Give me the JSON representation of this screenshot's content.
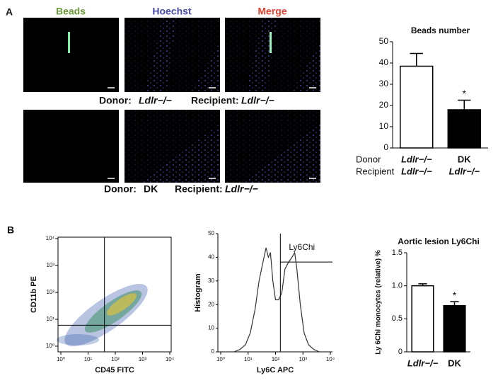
{
  "panel_a": {
    "label": "A",
    "channels": [
      "Beads",
      "Hoechst",
      "Merge"
    ],
    "channel_colors": [
      "#6b9a3a",
      "#4b4bb0",
      "#e8402e"
    ],
    "rows": [
      {
        "donor_label": "Donor:",
        "donor": "Ldlr−/−",
        "recipient_label": "Recipient:",
        "recipient": "Ldlr−/−"
      },
      {
        "donor_label": "Donor:",
        "donor": "DK",
        "recipient_label": "Recipient:",
        "recipient": "Ldlr−/−"
      }
    ]
  },
  "panel_b": {
    "label": "B"
  },
  "chart_data": [
    {
      "type": "bar",
      "title": "Beads number",
      "row_labels": [
        "Donor",
        "Recipient"
      ],
      "categories": [
        "Ldlr−/−",
        "DK"
      ],
      "recipient_categories": [
        "Ldlr−/−",
        "Ldlr−/−"
      ],
      "values": [
        38.5,
        18
      ],
      "errors": [
        6,
        4.5
      ],
      "colors": [
        "#ffffff",
        "#000000"
      ],
      "significance": [
        null,
        "*"
      ],
      "ylim": [
        0,
        50
      ],
      "yticks": [
        0,
        10,
        20,
        30,
        40,
        50
      ]
    },
    {
      "type": "density",
      "x_label": "CD45 FITC",
      "y_label": "CD11b PE",
      "log": true,
      "xlim": [
        1,
        10000
      ],
      "ylim": [
        1,
        10000
      ],
      "xticks": [
        {
          "value": 1,
          "label": "10⁰"
        },
        {
          "value": 10,
          "label": "10¹"
        },
        {
          "value": 100,
          "label": "10²"
        },
        {
          "value": 1000,
          "label": "10³"
        },
        {
          "value": 10000,
          "label": "10⁴"
        }
      ],
      "yticks": [
        {
          "value": 1,
          "label": "10⁰"
        },
        {
          "value": 10,
          "label": "10¹"
        },
        {
          "value": 100,
          "label": "10²"
        },
        {
          "value": 1000,
          "label": "10³"
        },
        {
          "value": 10000,
          "label": "10⁴"
        }
      ],
      "gate_x": 40,
      "gate_y": 6
    },
    {
      "type": "line",
      "x_label": "Ly6C APC",
      "y_label": "Histogram",
      "log": true,
      "color": "#333333",
      "xlim": [
        1,
        10000
      ],
      "ylim": [
        0,
        50
      ],
      "xticks": [
        {
          "value": 1,
          "label": "10⁰"
        },
        {
          "value": 10,
          "label": "10¹"
        },
        {
          "value": 100,
          "label": "10²"
        },
        {
          "value": 1000,
          "label": "10³"
        },
        {
          "value": 10000,
          "label": "10⁴"
        }
      ],
      "yticks": [
        0,
        10,
        20,
        30,
        40,
        50
      ],
      "x": [
        3,
        5,
        8,
        12,
        18,
        25,
        35,
        45,
        55,
        65,
        80,
        100,
        130,
        170,
        220,
        300,
        400,
        500,
        600,
        800,
        1100,
        1600,
        2500,
        4000
      ],
      "values": [
        0,
        1,
        3,
        8,
        18,
        30,
        38,
        44,
        40,
        42,
        30,
        22,
        22,
        25,
        35,
        38,
        40,
        42,
        35,
        20,
        8,
        3,
        1,
        0
      ],
      "gate_x": 150,
      "gate_level": 38,
      "gate_label": "Ly6Chi"
    },
    {
      "type": "bar",
      "title": "Aortic lesion Ly6Chi",
      "y_label": "Ly 6Chi monocytes (relative) %",
      "categories": [
        "Ldlr−/−",
        "DK"
      ],
      "values": [
        1.0,
        0.7
      ],
      "errors": [
        0.03,
        0.06
      ],
      "colors": [
        "#ffffff",
        "#000000"
      ],
      "significance": [
        null,
        "*"
      ],
      "ylim": [
        0,
        1.5
      ],
      "yticks": [
        0,
        0.5,
        {
          "value": 1,
          "label": "1.0"
        },
        1.5
      ]
    }
  ]
}
